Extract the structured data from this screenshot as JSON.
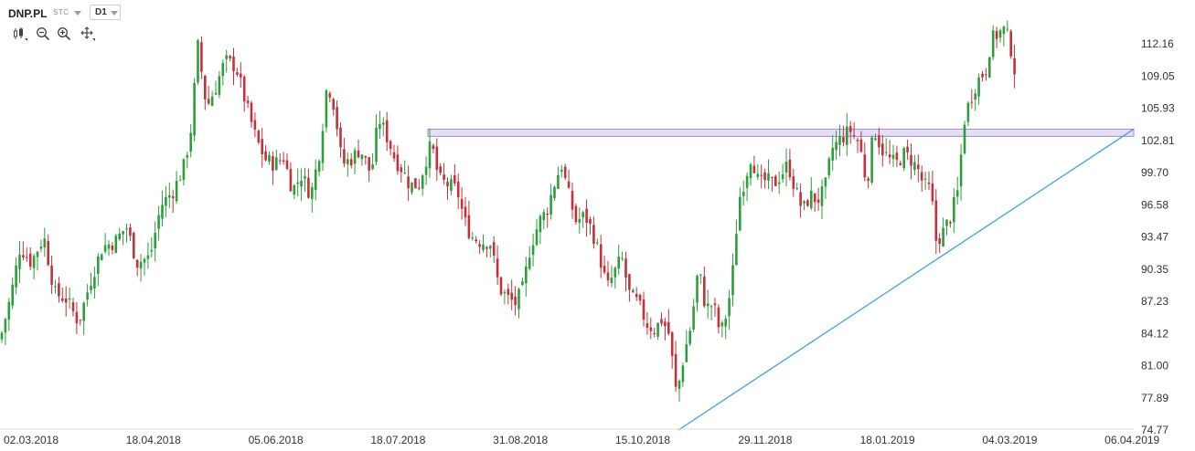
{
  "header": {
    "symbol": "DNP.PL",
    "exchange": "STC",
    "timeframe": "D1",
    "tools": [
      {
        "icon": "candlestick-icon"
      },
      {
        "icon": "zoom-out-icon"
      },
      {
        "icon": "zoom-in-icon"
      },
      {
        "icon": "crosshair-icon"
      }
    ]
  },
  "colors": {
    "up": "#2e9e3c",
    "down": "#c4303c",
    "trendline": "#3ea0dc",
    "zone_fill": "#e6ddf6",
    "zone_stroke": "#a28bd8",
    "grid": "#f0f0f0"
  },
  "chart_data": {
    "type": "candlestick",
    "y_ticks": [
      "112.16",
      "109.05",
      "105.93",
      "102.81",
      "99.70",
      "96.58",
      "93.47",
      "90.35",
      "87.23",
      "84.12",
      "81.00",
      "77.89",
      "74.77"
    ],
    "x_ticks": [
      "02.03.2018",
      "18.04.2018",
      "05.06.2018",
      "18.07.2018",
      "31.08.2018",
      "15.10.2018",
      "29.11.2018",
      "18.01.2019",
      "04.03.2019",
      "06.04.2019"
    ],
    "ylim": [
      74.77,
      115.28
    ],
    "grid": false,
    "resistance_zone": {
      "low": 103.2,
      "high": 103.9
    },
    "trendline": {
      "start": {
        "date": "2018-10-22",
        "price": 74.77
      },
      "end": {
        "date": "2019-04-01",
        "price": 103.9
      }
    },
    "close_path": [
      [
        0,
        83.5
      ],
      [
        12,
        87.8
      ],
      [
        22,
        92.5
      ],
      [
        34,
        91.0
      ],
      [
        48,
        93.5
      ],
      [
        60,
        88.0
      ],
      [
        72,
        87.5
      ],
      [
        86,
        85.2
      ],
      [
        100,
        89.5
      ],
      [
        112,
        92.5
      ],
      [
        126,
        93.0
      ],
      [
        138,
        94.5
      ],
      [
        150,
        91.0
      ],
      [
        164,
        91.5
      ],
      [
        176,
        96.5
      ],
      [
        190,
        98.0
      ],
      [
        202,
        100.5
      ],
      [
        210,
        104.5
      ],
      [
        216,
        112.2
      ],
      [
        226,
        106.0
      ],
      [
        236,
        108.0
      ],
      [
        246,
        110.5
      ],
      [
        258,
        110.0
      ],
      [
        270,
        106.0
      ],
      [
        280,
        103.0
      ],
      [
        290,
        101.0
      ],
      [
        300,
        100.5
      ],
      [
        310,
        101.2
      ],
      [
        320,
        98.0
      ],
      [
        330,
        99.5
      ],
      [
        340,
        97.5
      ],
      [
        350,
        102.0
      ],
      [
        358,
        108.5
      ],
      [
        366,
        106.0
      ],
      [
        374,
        100.5
      ],
      [
        384,
        101.0
      ],
      [
        394,
        102.0
      ],
      [
        406,
        99.5
      ],
      [
        414,
        105.0
      ],
      [
        424,
        103.0
      ],
      [
        432,
        101.0
      ],
      [
        440,
        100.0
      ],
      [
        448,
        98.5
      ],
      [
        458,
        98.5
      ],
      [
        466,
        101.0
      ],
      [
        472,
        102.5
      ],
      [
        480,
        99.0
      ],
      [
        490,
        98.5
      ],
      [
        500,
        98.0
      ],
      [
        508,
        95.0
      ],
      [
        516,
        93.5
      ],
      [
        526,
        93.0
      ],
      [
        536,
        93.0
      ],
      [
        546,
        88.5
      ],
      [
        556,
        87.5
      ],
      [
        564,
        87.0
      ],
      [
        572,
        88.5
      ],
      [
        580,
        92.5
      ],
      [
        590,
        95.0
      ],
      [
        598,
        96.0
      ],
      [
        606,
        98.5
      ],
      [
        614,
        100.5
      ],
      [
        622,
        97.5
      ],
      [
        630,
        95.0
      ],
      [
        640,
        95.5
      ],
      [
        648,
        94.0
      ],
      [
        656,
        91.5
      ],
      [
        664,
        88.5
      ],
      [
        672,
        90.0
      ],
      [
        680,
        91.5
      ],
      [
        688,
        88.0
      ],
      [
        698,
        87.0
      ],
      [
        708,
        85.0
      ],
      [
        716,
        84.5
      ],
      [
        724,
        85.5
      ],
      [
        732,
        84.0
      ],
      [
        740,
        78.0
      ],
      [
        748,
        82.0
      ],
      [
        756,
        85.0
      ],
      [
        764,
        90.5
      ],
      [
        772,
        86.5
      ],
      [
        780,
        87.0
      ],
      [
        788,
        84.0
      ],
      [
        796,
        86.5
      ],
      [
        802,
        90.5
      ],
      [
        808,
        97.0
      ],
      [
        816,
        99.5
      ],
      [
        822,
        101.5
      ],
      [
        830,
        98.5
      ],
      [
        838,
        99.0
      ],
      [
        846,
        98.5
      ],
      [
        854,
        99.5
      ],
      [
        862,
        100.5
      ],
      [
        870,
        98.0
      ],
      [
        878,
        96.0
      ],
      [
        886,
        97.5
      ],
      [
        894,
        97.0
      ],
      [
        902,
        98.0
      ],
      [
        910,
        102.0
      ],
      [
        920,
        103.0
      ],
      [
        930,
        103.8
      ],
      [
        940,
        102.5
      ],
      [
        948,
        98.5
      ],
      [
        956,
        104.0
      ],
      [
        964,
        102.0
      ],
      [
        972,
        101.0
      ],
      [
        980,
        100.5
      ],
      [
        988,
        101.5
      ],
      [
        996,
        101.0
      ],
      [
        1004,
        100.0
      ],
      [
        1010,
        98.5
      ],
      [
        1018,
        98.0
      ],
      [
        1024,
        93.0
      ],
      [
        1032,
        94.0
      ],
      [
        1040,
        95.5
      ],
      [
        1048,
        98.0
      ],
      [
        1054,
        104.5
      ],
      [
        1060,
        106.5
      ],
      [
        1066,
        108.0
      ],
      [
        1072,
        109.0
      ],
      [
        1078,
        109.5
      ],
      [
        1084,
        112.5
      ],
      [
        1092,
        113.2
      ],
      [
        1098,
        113.5
      ],
      [
        1104,
        112.5
      ],
      [
        1110,
        109.5
      ]
    ]
  }
}
